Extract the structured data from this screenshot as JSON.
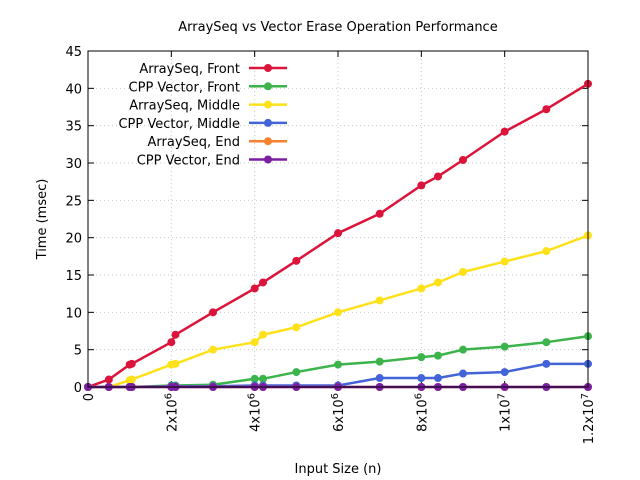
{
  "chart_data": {
    "type": "line",
    "title": "ArraySeq vs Vector Erase Operation Performance",
    "xlabel": "Input Size (n)",
    "ylabel": "Time (msec)",
    "xlim": [
      0,
      12000000
    ],
    "ylim": [
      0,
      45
    ],
    "x_ticks": [
      {
        "value": 0,
        "label": "0"
      },
      {
        "value": 2000000,
        "label": "2x10",
        "exp": "6"
      },
      {
        "value": 4000000,
        "label": "4x10",
        "exp": "6"
      },
      {
        "value": 6000000,
        "label": "6x10",
        "exp": "6"
      },
      {
        "value": 8000000,
        "label": "8x10",
        "exp": "6"
      },
      {
        "value": 10000000,
        "label": "1x10",
        "exp": "7"
      },
      {
        "value": 12000000,
        "label": "1.2x10",
        "exp": "7"
      }
    ],
    "y_ticks": [
      0,
      5,
      10,
      15,
      20,
      25,
      30,
      35,
      40,
      45
    ],
    "grid": true,
    "legend_position": "top-left",
    "x": [
      0,
      500000,
      1000000,
      1050000,
      2000000,
      2100000,
      3000000,
      4000000,
      4200000,
      5000000,
      6000000,
      7000000,
      8000000,
      8400000,
      9000000,
      10000000,
      11000000,
      12000000
    ],
    "series": [
      {
        "name": "ArraySeq, Front",
        "color": "#dc143c",
        "values": [
          0,
          1,
          3,
          3.1,
          6,
          7,
          10,
          13.2,
          14,
          16.9,
          20.6,
          23.2,
          27,
          28.2,
          30.4,
          34.2,
          37.2,
          40.6
        ]
      },
      {
        "name": "CPP Vector, Front",
        "color": "#3cb44b",
        "values": [
          0,
          0,
          0,
          0,
          0.2,
          0.2,
          0.3,
          1.1,
          1.1,
          2,
          3,
          3.4,
          4,
          4.2,
          5,
          5.4,
          6,
          6.8
        ]
      },
      {
        "name": "ArraySeq, Middle",
        "color": "#ffe119",
        "values": [
          0,
          0,
          0.9,
          1,
          3,
          3.1,
          5,
          6,
          7,
          8,
          10,
          11.6,
          13.2,
          14,
          15.4,
          16.8,
          18.2,
          20.3
        ]
      },
      {
        "name": "CPP Vector, Middle",
        "color": "#4363d8",
        "values": [
          0,
          0,
          0,
          0,
          0.1,
          0.1,
          0.1,
          0.2,
          0.2,
          0.2,
          0.2,
          1.2,
          1.2,
          1.2,
          1.8,
          2,
          3.1,
          3.1
        ]
      },
      {
        "name": "ArraySeq, End",
        "color": "#f58231",
        "values": [
          0,
          0,
          0,
          0,
          0,
          0,
          0,
          0,
          0,
          0,
          0,
          0,
          0,
          0,
          0,
          0,
          0,
          0
        ]
      },
      {
        "name": "CPP Vector, End",
        "color": "#7b1fa2",
        "values": [
          0,
          0,
          0,
          0,
          0,
          0,
          0,
          0,
          0,
          0,
          0,
          0,
          0,
          0,
          0,
          0,
          0,
          0
        ]
      }
    ]
  }
}
